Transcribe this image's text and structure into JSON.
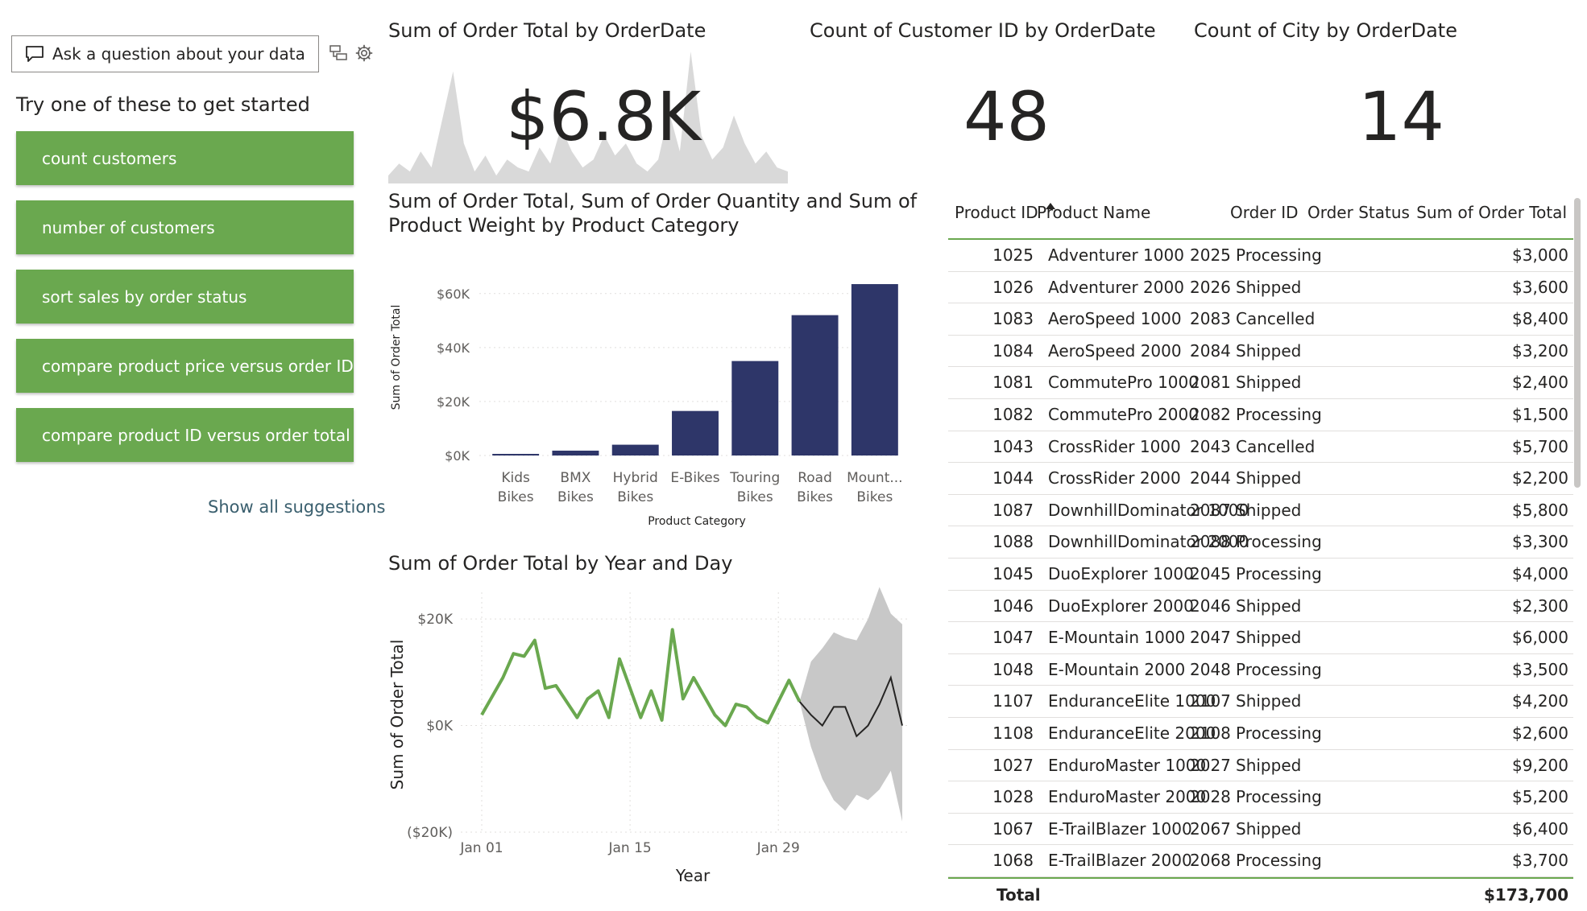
{
  "qa": {
    "placeholder": "Ask a question about your data",
    "try_title": "Try one of these to get started",
    "suggestions": [
      "count customers",
      "number of customers",
      "sort sales by order status",
      "compare product price versus order ID",
      "compare product ID versus order total"
    ],
    "show_all": "Show all suggestions"
  },
  "kpis": {
    "order_total": {
      "title": "Sum of Order Total by OrderDate",
      "value": "$6.8K"
    },
    "customers": {
      "title": "Count of Customer ID by OrderDate",
      "value": "48"
    },
    "city": {
      "title": "Count of City by OrderDate",
      "value": "14"
    }
  },
  "sparkline": {
    "color": "#d9d9d9",
    "values": [
      2,
      5,
      3,
      8,
      4,
      16,
      28,
      10,
      3,
      7,
      2,
      6,
      4,
      3,
      9,
      5,
      14,
      8,
      4,
      6,
      12,
      7,
      10,
      5,
      3,
      6,
      18,
      8,
      33,
      12,
      6,
      9,
      17,
      10,
      5,
      8,
      4,
      3
    ]
  },
  "bar_chart": {
    "title_line1": "Sum of Order Total, Sum of Order Quantity and Sum of",
    "title_line2": "Product Weight by Product Category",
    "color": "#2e3669",
    "y_ticks": [
      "$0K",
      "$20K",
      "$40K",
      "$60K"
    ],
    "cat_lines": [
      [
        "Kids",
        "Bikes"
      ],
      [
        "BMX",
        "Bikes"
      ],
      [
        "Hybrid",
        "Bikes"
      ],
      [
        "E-Bikes",
        ""
      ],
      [
        "Touring",
        "Bikes"
      ],
      [
        "Road",
        "Bikes"
      ],
      [
        "Mount...",
        "Bikes"
      ]
    ]
  },
  "line_chart": {
    "title": "Sum of Order Total by Year and Day",
    "line_color": "#6aa84f",
    "forecast_color": "#252423",
    "band_color": "#c8c8c8",
    "y_ticks": [
      "$20K",
      "$0K",
      "($20K)"
    ],
    "x_ticks": [
      "Jan 01",
      "Jan 15",
      "Jan 29"
    ]
  },
  "chart_data": [
    {
      "type": "bar",
      "title": "Sum of Order Total, Sum of Order Quantity and Sum of Product Weight by Product Category",
      "xlabel": "Product Category",
      "ylabel": "Sum of Order Total",
      "categories": [
        "Kids Bikes",
        "BMX Bikes",
        "Hybrid Bikes",
        "E-Bikes",
        "Touring Bikes",
        "Road Bikes",
        "Mount... Bikes"
      ],
      "values": [
        600,
        1800,
        4000,
        16500,
        35000,
        52000,
        63500
      ],
      "ylim": [
        0,
        65000
      ],
      "grid": true
    },
    {
      "type": "line",
      "title": "Sum of Order Total by Year and Day",
      "xlabel": "Year",
      "ylabel": "Sum of Order Total",
      "x_start": "Jan 01",
      "x": [
        "Jan 01",
        "Jan 03",
        "Jan 04",
        "Jan 05",
        "Jan 06",
        "Jan 07",
        "Jan 08",
        "Jan 10",
        "Jan 11",
        "Jan 12",
        "Jan 13",
        "Jan 14",
        "Jan 16",
        "Jan 17",
        "Jan 18",
        "Jan 19",
        "Jan 20",
        "Jan 21",
        "Jan 23",
        "Jan 24",
        "Jan 25",
        "Jan 26",
        "Jan 27",
        "Jan 28",
        "Jan 29",
        "Jan 30",
        "Jan 31"
      ],
      "values": [
        2000,
        9000,
        13500,
        13000,
        16000,
        7000,
        7500,
        1500,
        5000,
        6500,
        1500,
        12500,
        1500,
        6500,
        1000,
        18000,
        5000,
        9000,
        2000,
        0,
        4000,
        3500,
        1500,
        500,
        4500,
        8500,
        4500
      ],
      "forecast": [
        2000,
        0,
        3500,
        3500,
        -2000,
        0,
        4000,
        9000,
        0
      ],
      "forecast_upper": [
        12000,
        14500,
        17500,
        16500,
        16000,
        20000,
        26000,
        21000,
        19000
      ],
      "forecast_lower": [
        -4000,
        -10000,
        -14000,
        -16000,
        -13000,
        -14000,
        -12000,
        -8500,
        -18000
      ],
      "ylim": [
        -20000,
        25000
      ],
      "grid": true
    }
  ],
  "table": {
    "headers": [
      "Product ID",
      "Product Name",
      "Order ID",
      "Order Status",
      "Sum of Order Total"
    ],
    "rows": [
      [
        "1025",
        "Adventurer 1000",
        "2025",
        "Processing",
        "$3,000"
      ],
      [
        "1026",
        "Adventurer 2000",
        "2026",
        "Shipped",
        "$3,600"
      ],
      [
        "1083",
        "AeroSpeed 1000",
        "2083",
        "Cancelled",
        "$8,400"
      ],
      [
        "1084",
        "AeroSpeed 2000",
        "2084",
        "Shipped",
        "$3,200"
      ],
      [
        "1081",
        "CommutePro 1000",
        "2081",
        "Shipped",
        "$2,400"
      ],
      [
        "1082",
        "CommutePro 2000",
        "2082",
        "Processing",
        "$1,500"
      ],
      [
        "1043",
        "CrossRider 1000",
        "2043",
        "Cancelled",
        "$5,700"
      ],
      [
        "1044",
        "CrossRider 2000",
        "2044",
        "Shipped",
        "$2,200"
      ],
      [
        "1087",
        "DownhillDominator 1000",
        "2087",
        "Shipped",
        "$5,800"
      ],
      [
        "1088",
        "DownhillDominator 2000",
        "2088",
        "Processing",
        "$3,300"
      ],
      [
        "1045",
        "DuoExplorer 1000",
        "2045",
        "Processing",
        "$4,000"
      ],
      [
        "1046",
        "DuoExplorer 2000",
        "2046",
        "Shipped",
        "$2,300"
      ],
      [
        "1047",
        "E-Mountain 1000",
        "2047",
        "Shipped",
        "$6,000"
      ],
      [
        "1048",
        "E-Mountain 2000",
        "2048",
        "Processing",
        "$3,500"
      ],
      [
        "1107",
        "EnduranceElite 1000",
        "2107",
        "Shipped",
        "$4,200"
      ],
      [
        "1108",
        "EnduranceElite 2000",
        "2108",
        "Processing",
        "$2,600"
      ],
      [
        "1027",
        "EnduroMaster 1000",
        "2027",
        "Shipped",
        "$9,200"
      ],
      [
        "1028",
        "EnduroMaster 2000",
        "2028",
        "Processing",
        "$5,200"
      ],
      [
        "1067",
        "E-TrailBlazer 1000",
        "2067",
        "Shipped",
        "$6,400"
      ],
      [
        "1068",
        "E-TrailBlazer 2000",
        "2068",
        "Processing",
        "$3,700"
      ]
    ],
    "total_label": "Total",
    "total_value": "$173,700"
  }
}
